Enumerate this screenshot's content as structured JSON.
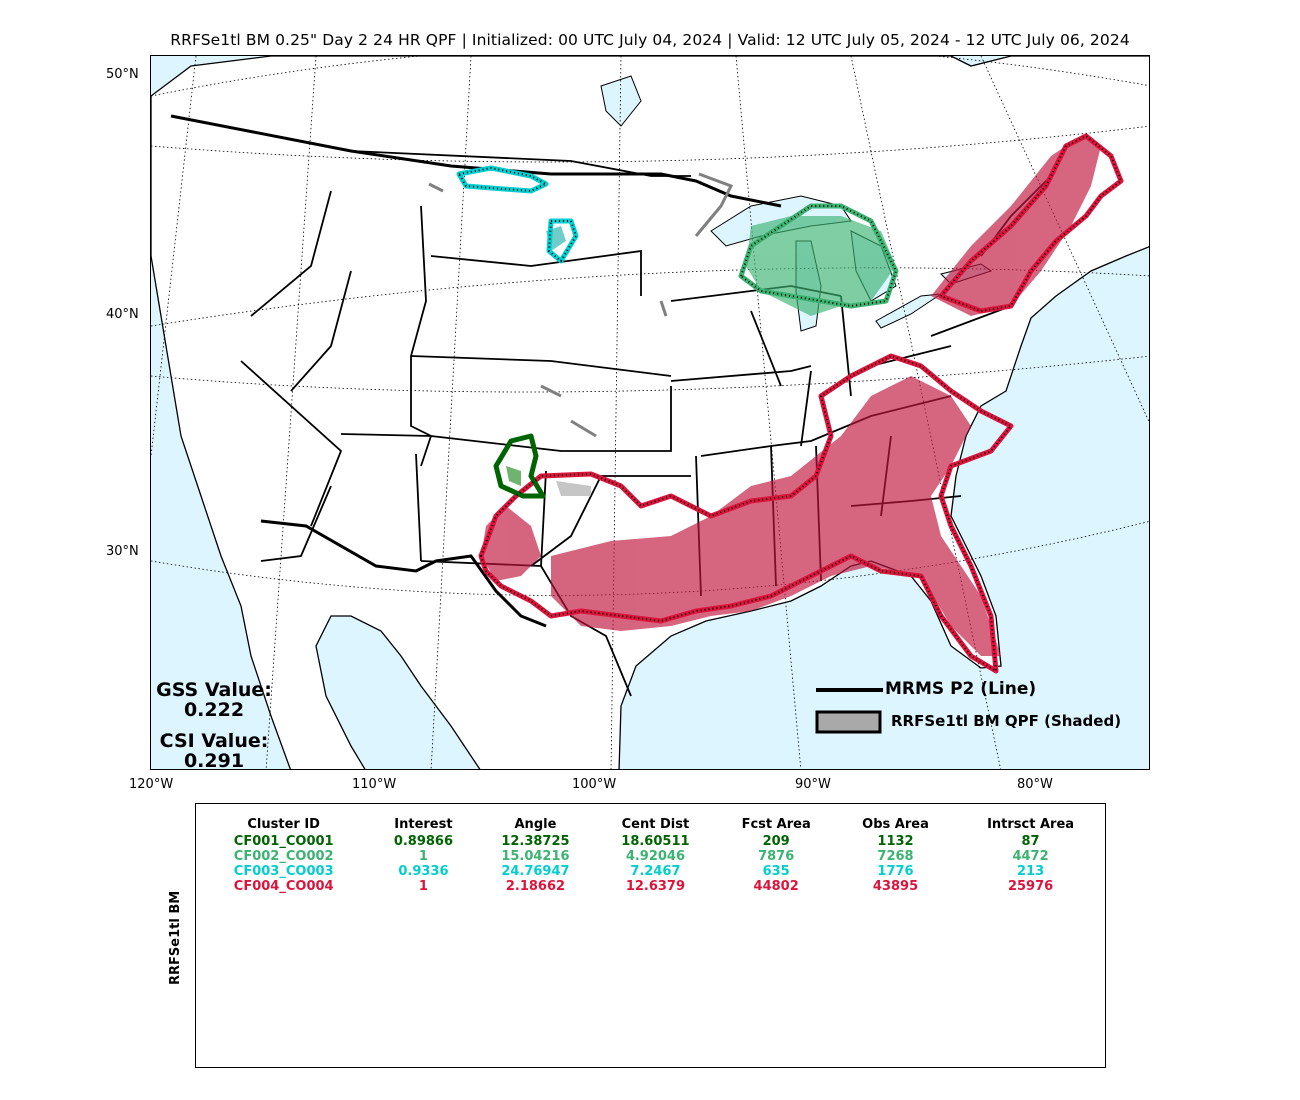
{
  "title": "RRFSe1tl BM 0.25\" Day 2 24 HR QPF | Initialized: 00 UTC July 04, 2024 | Valid: 12 UTC July 05, 2024 - 12 UTC July 06, 2024",
  "latitude_labels": [
    "50°N",
    "40°N",
    "30°N"
  ],
  "longitude_labels": [
    "120°W",
    "110°W",
    "100°W",
    "90°W",
    "80°W"
  ],
  "stats": {
    "gss_label": "GSS Value:",
    "gss_value": "0.222",
    "csi_label": "CSI Value:",
    "csi_value": "0.291"
  },
  "legend": {
    "line_label": "MRMS P2 (Line)",
    "shaded_label": "RRFSe1tl BM QPF (Shaded)"
  },
  "colors": {
    "water": "#dcf5ff",
    "land": "#ffffff",
    "cluster1": "#006400",
    "cluster2": "#3cb371",
    "cluster3": "#00ced1",
    "cluster4": "#dc143c",
    "unmatched": "#a9a9a9"
  },
  "table": {
    "side_label": "RRFSe1tl BM",
    "headers": [
      "Cluster ID",
      "Interest",
      "Angle",
      "Cent Dist",
      "Fcst Area",
      "Obs Area",
      "Intrsct Area"
    ],
    "rows": [
      {
        "color": "#006400",
        "cells": [
          "CF001_CO001",
          "0.89866",
          "12.38725",
          "18.60511",
          "209",
          "1132",
          "87"
        ]
      },
      {
        "color": "#3cb371",
        "cells": [
          "CF002_CO002",
          "1",
          "15.04216",
          "4.92046",
          "7876",
          "7268",
          "4472"
        ]
      },
      {
        "color": "#00ced1",
        "cells": [
          "CF003_CO003",
          "0.9336",
          "24.76947",
          "7.2467",
          "635",
          "1776",
          "213"
        ]
      },
      {
        "color": "#dc143c",
        "cells": [
          "CF004_CO004",
          "1",
          "2.18662",
          "12.6379",
          "44802",
          "43895",
          "25976"
        ]
      }
    ]
  }
}
